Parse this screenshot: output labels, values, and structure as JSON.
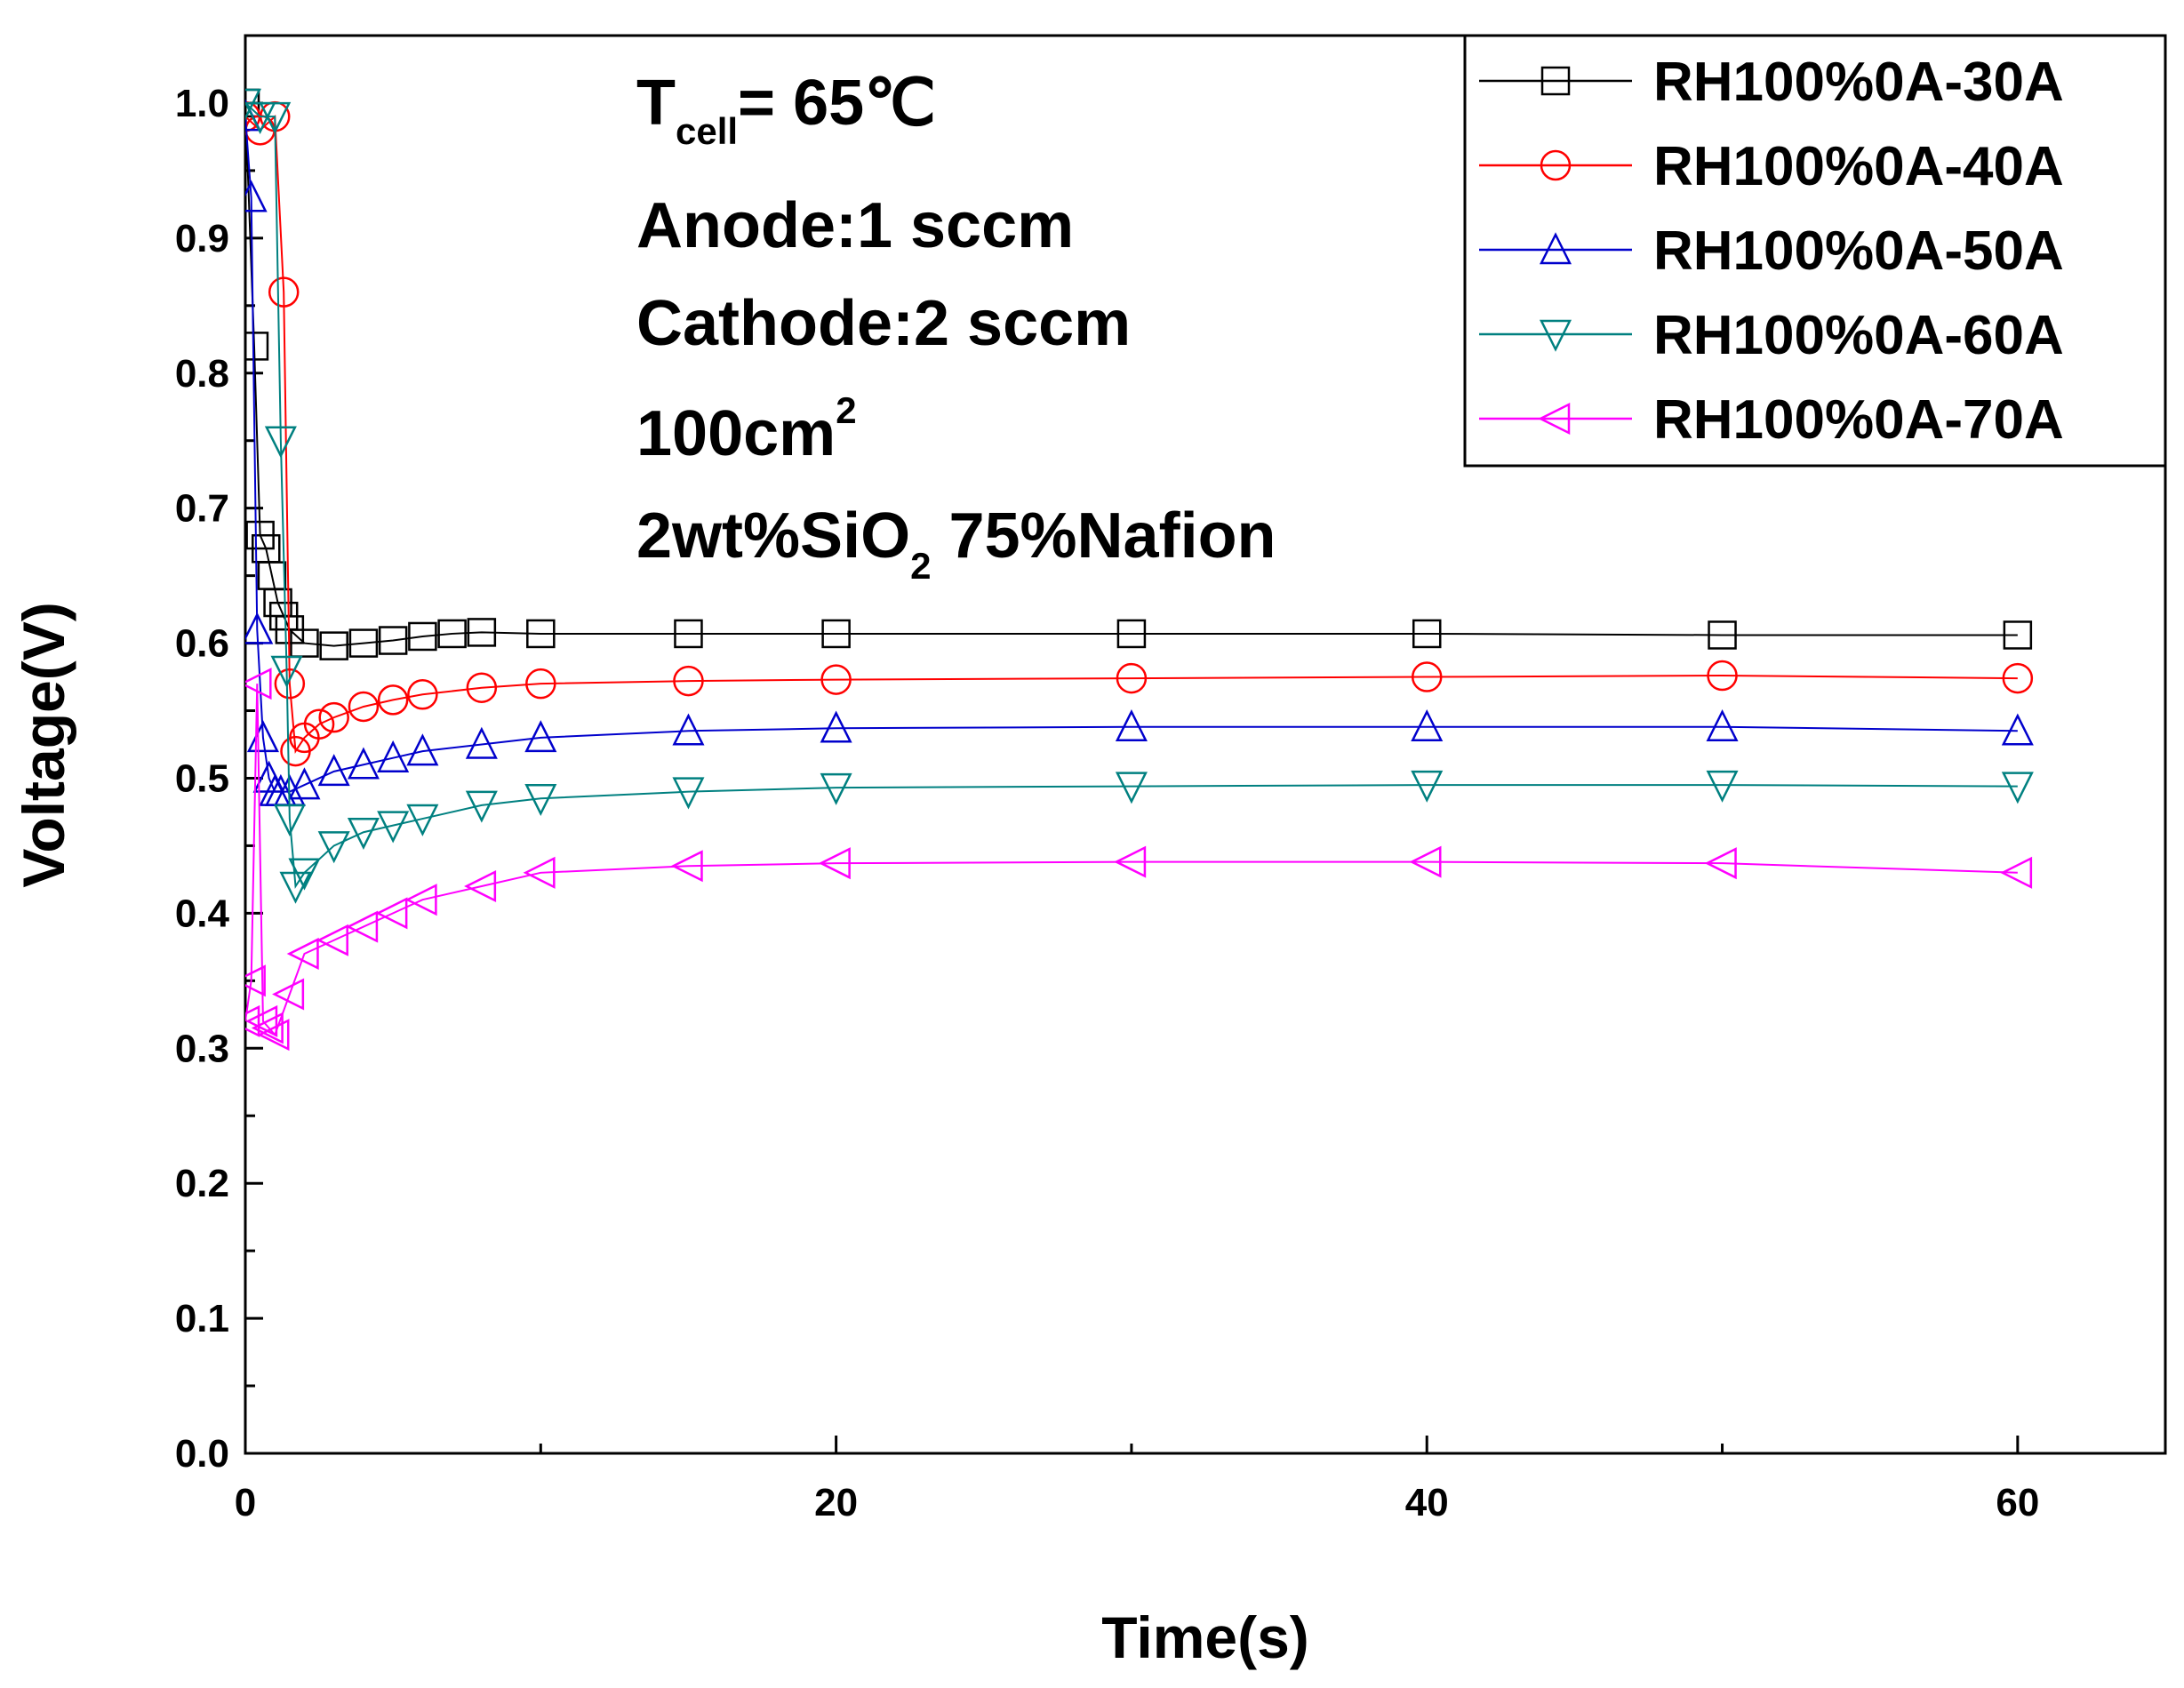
{
  "chart_data": {
    "type": "scatter",
    "title": "",
    "xlabel": "Time(s)",
    "ylabel": "Voltage(V)",
    "xlim": [
      0,
      65
    ],
    "ylim": [
      0.0,
      1.05
    ],
    "xticks": [
      0,
      20,
      40,
      60
    ],
    "xtick_labels": [
      "0",
      "20",
      "40",
      "60"
    ],
    "yticks": [
      0.0,
      0.1,
      0.2,
      0.3,
      0.4,
      0.5,
      0.6,
      0.7,
      0.8,
      0.9,
      1.0
    ],
    "ytick_labels": [
      "0.0",
      "0.1",
      "0.2",
      "0.3",
      "0.4",
      "0.5",
      "0.6",
      "0.7",
      "0.8",
      "0.9",
      "1.0"
    ],
    "grid": false,
    "legend_position": "top-right",
    "annotations": {
      "temp_main": "T",
      "temp_sub": "cell",
      "temp_rest": "= 65℃",
      "anode": "Anode:1 sccm",
      "cathode": "Cathode:2 sccm",
      "area_main": "100cm",
      "area_sup": "2",
      "membrane_main": "2wt%SiO",
      "membrane_sub": "2",
      "membrane_rest": " 75%Nafion"
    },
    "series": [
      {
        "name": "RH100%0A-30A",
        "color": "#000000",
        "marker": "square",
        "x": [
          0,
          0.3,
          0.5,
          0.7,
          0.9,
          1.1,
          1.3,
          1.5,
          2,
          3,
          4,
          5,
          6,
          7,
          8,
          10,
          15,
          20,
          30,
          40,
          50,
          60
        ],
        "y": [
          1.0,
          0.82,
          0.68,
          0.67,
          0.65,
          0.63,
          0.62,
          0.61,
          0.6,
          0.598,
          0.6,
          0.602,
          0.605,
          0.607,
          0.608,
          0.607,
          0.607,
          0.607,
          0.607,
          0.607,
          0.606,
          0.606
        ]
      },
      {
        "name": "RH100%0A-40A",
        "color": "#ff0000",
        "marker": "circle",
        "x": [
          0,
          0.5,
          1.0,
          1.3,
          1.5,
          1.7,
          2,
          2.5,
          3,
          4,
          5,
          6,
          8,
          10,
          15,
          20,
          30,
          40,
          50,
          60
        ],
        "y": [
          0.99,
          0.98,
          0.99,
          0.86,
          0.57,
          0.52,
          0.53,
          0.54,
          0.545,
          0.553,
          0.558,
          0.562,
          0.567,
          0.57,
          0.572,
          0.573,
          0.574,
          0.575,
          0.576,
          0.574
        ]
      },
      {
        "name": "RH100%0A-50A",
        "color": "#0000cc",
        "marker": "triangle-up",
        "x": [
          0,
          0.2,
          0.4,
          0.6,
          0.8,
          1.0,
          1.2,
          1.5,
          2,
          3,
          4,
          5,
          6,
          8,
          10,
          15,
          20,
          30,
          40,
          50,
          60
        ],
        "y": [
          0.99,
          0.93,
          0.61,
          0.53,
          0.5,
          0.49,
          0.49,
          0.49,
          0.495,
          0.505,
          0.51,
          0.515,
          0.52,
          0.525,
          0.53,
          0.535,
          0.537,
          0.538,
          0.538,
          0.538,
          0.535
        ]
      },
      {
        "name": "RH100%0A-60A",
        "color": "#008080",
        "marker": "triangle-down",
        "x": [
          0,
          0.5,
          1.0,
          1.2,
          1.4,
          1.5,
          1.7,
          2,
          3,
          4,
          5,
          6,
          8,
          10,
          15,
          20,
          30,
          40,
          50,
          60
        ],
        "y": [
          1.0,
          0.99,
          0.99,
          0.75,
          0.58,
          0.47,
          0.42,
          0.43,
          0.45,
          0.46,
          0.465,
          0.47,
          0.48,
          0.485,
          0.49,
          0.493,
          0.494,
          0.495,
          0.495,
          0.494
        ]
      },
      {
        "name": "RH100%0A-70A",
        "color": "#ff00ff",
        "marker": "triangle-left",
        "x": [
          0,
          0.2,
          0.4,
          0.6,
          0.8,
          1.0,
          1.5,
          2,
          3,
          4,
          5,
          6,
          8,
          10,
          15,
          20,
          30,
          40,
          50,
          60
        ],
        "y": [
          0.32,
          0.35,
          0.57,
          0.32,
          0.315,
          0.31,
          0.34,
          0.37,
          0.38,
          0.39,
          0.4,
          0.41,
          0.42,
          0.43,
          0.435,
          0.437,
          0.438,
          0.438,
          0.437,
          0.43
        ]
      }
    ]
  }
}
